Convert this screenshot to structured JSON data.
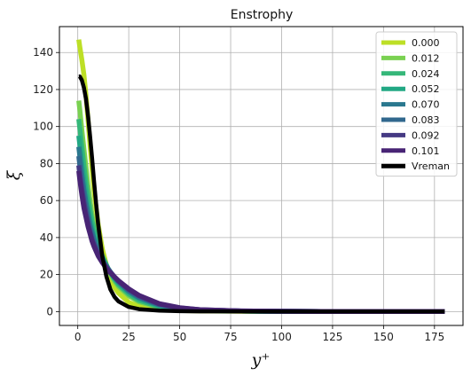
{
  "chart_data": {
    "type": "line",
    "title": "Enstrophy",
    "xlabel": "y⁺",
    "ylabel": "ξ",
    "xlim": [
      -9,
      189
    ],
    "ylim": [
      -7.5,
      154
    ],
    "xticks": [
      0,
      25,
      50,
      75,
      100,
      125,
      150,
      175
    ],
    "yticks": [
      0,
      20,
      40,
      60,
      80,
      100,
      120,
      140
    ],
    "grid": true,
    "legend_position": "top-right",
    "series": [
      {
        "name": "0.000",
        "color": "#bddf26",
        "x": [
          0.5,
          1,
          2,
          3,
          4,
          5,
          6,
          7,
          8,
          10,
          12,
          15,
          18,
          20,
          25,
          30,
          40,
          50,
          60,
          80,
          100,
          120,
          140,
          160,
          180
        ],
        "y": [
          147,
          143,
          136,
          128,
          117,
          104,
          90,
          77,
          65,
          47,
          34,
          21,
          13,
          10,
          5,
          2.8,
          1.2,
          0.6,
          0.35,
          0.15,
          0.08,
          0.05,
          0.03,
          0.02,
          0.02
        ]
      },
      {
        "name": "0.012",
        "color": "#7ad151",
        "x": [
          0.5,
          1,
          2,
          3,
          4,
          5,
          6,
          7,
          8,
          10,
          12,
          15,
          18,
          20,
          25,
          30,
          40,
          50,
          60,
          80,
          100,
          120,
          140,
          160,
          180
        ],
        "y": [
          114,
          109,
          98,
          88,
          78,
          68,
          60,
          52,
          46,
          37,
          30,
          22,
          16.5,
          13.5,
          8.5,
          5.3,
          2.3,
          1.1,
          0.6,
          0.25,
          0.12,
          0.07,
          0.05,
          0.04,
          0.03
        ]
      },
      {
        "name": "0.024",
        "color": "#35b779",
        "x": [
          0.5,
          1,
          2,
          3,
          4,
          5,
          6,
          7,
          8,
          10,
          12,
          15,
          18,
          20,
          25,
          30,
          40,
          50,
          60,
          80,
          100,
          120,
          140,
          160,
          180
        ],
        "y": [
          104,
          99,
          89,
          79,
          70,
          62,
          55,
          49,
          44,
          36,
          30,
          23,
          17.5,
          14.5,
          9.5,
          6,
          2.6,
          1.2,
          0.6,
          0.25,
          0.12,
          0.07,
          0.05,
          0.04,
          0.03
        ]
      },
      {
        "name": "0.052",
        "color": "#22a884",
        "x": [
          0.5,
          1,
          2,
          3,
          4,
          5,
          6,
          7,
          8,
          10,
          12,
          15,
          18,
          20,
          25,
          30,
          40,
          50,
          60,
          80,
          100,
          120,
          140,
          160,
          180
        ],
        "y": [
          95,
          90,
          80,
          71,
          63,
          56,
          50,
          45,
          41,
          34,
          29,
          23,
          18,
          15.5,
          10.5,
          7,
          3.1,
          1.4,
          0.7,
          0.28,
          0.13,
          0.08,
          0.05,
          0.04,
          0.03
        ]
      },
      {
        "name": "0.070",
        "color": "#2a788e",
        "x": [
          0.5,
          1,
          2,
          3,
          4,
          5,
          6,
          7,
          8,
          10,
          12,
          15,
          18,
          20,
          25,
          30,
          40,
          50,
          60,
          80,
          100,
          120,
          140,
          160,
          180
        ],
        "y": [
          89,
          84,
          74,
          66,
          59,
          53,
          47,
          43,
          39,
          33,
          28,
          23,
          18.5,
          16,
          11,
          7.5,
          3.5,
          1.6,
          0.8,
          0.3,
          0.14,
          0.08,
          0.05,
          0.04,
          0.03
        ]
      },
      {
        "name": "0.083",
        "color": "#31688e",
        "x": [
          0.5,
          1,
          2,
          3,
          4,
          5,
          6,
          7,
          8,
          10,
          12,
          15,
          18,
          20,
          25,
          30,
          40,
          50,
          60,
          80,
          100,
          120,
          140,
          160,
          180
        ],
        "y": [
          84,
          79,
          70,
          62,
          56,
          50,
          45,
          41,
          37,
          32,
          27.5,
          22.5,
          18.5,
          16.2,
          11.5,
          8,
          3.8,
          1.8,
          0.9,
          0.32,
          0.15,
          0.08,
          0.05,
          0.04,
          0.03
        ]
      },
      {
        "name": "0.092",
        "color": "#443983",
        "x": [
          0.5,
          1,
          2,
          3,
          4,
          5,
          6,
          7,
          8,
          10,
          12,
          15,
          18,
          20,
          25,
          30,
          40,
          50,
          60,
          80,
          100,
          120,
          140,
          160,
          180
        ],
        "y": [
          79,
          74,
          66,
          59,
          53,
          48,
          43,
          39,
          36,
          31,
          27,
          22.5,
          18.8,
          16.5,
          12,
          8.5,
          4.1,
          2,
          1,
          0.35,
          0.16,
          0.09,
          0.06,
          0.04,
          0.03
        ]
      },
      {
        "name": "0.101",
        "color": "#482475",
        "x": [
          0.5,
          1,
          2,
          3,
          4,
          5,
          6,
          7,
          8,
          10,
          12,
          15,
          18,
          20,
          25,
          30,
          40,
          50,
          60,
          80,
          100,
          120,
          140,
          160,
          180
        ],
        "y": [
          76,
          71,
          63,
          56,
          51,
          46,
          42,
          38,
          35,
          30,
          26.5,
          22,
          18.8,
          16.7,
          12.3,
          8.8,
          4.3,
          2.1,
          1.05,
          0.38,
          0.17,
          0.09,
          0.06,
          0.04,
          0.03
        ]
      },
      {
        "name": "Vreman",
        "color": "#000000",
        "x": [
          0.5,
          1,
          2,
          3,
          4,
          5,
          6,
          7,
          8,
          9,
          10,
          12,
          14,
          16,
          18,
          20,
          25,
          30,
          40,
          50,
          60,
          80,
          100,
          120,
          140,
          160,
          180
        ],
        "y": [
          127,
          127,
          125,
          121,
          115,
          106,
          95,
          83,
          70,
          58,
          47,
          30,
          19,
          12,
          8,
          5.5,
          2.5,
          1.3,
          0.5,
          0.22,
          0.1,
          0.05,
          0.03,
          0.02,
          0.02,
          0.02,
          0.02
        ]
      }
    ]
  }
}
